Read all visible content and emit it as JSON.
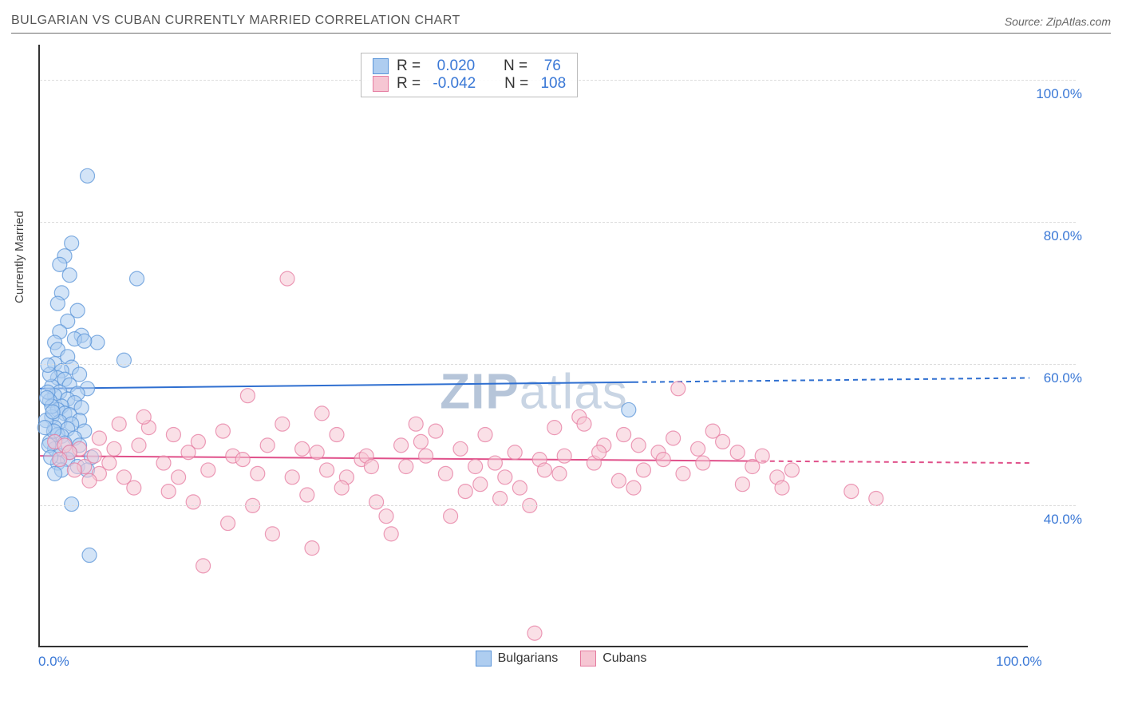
{
  "title": "BULGARIAN VS CUBAN CURRENTLY MARRIED CORRELATION CHART",
  "source_prefix": "Source:",
  "source_name": "ZipAtlas.com",
  "ylabel": "Currently Married",
  "watermark_a": "ZIP",
  "watermark_b": "atlas",
  "chart": {
    "type": "scatter",
    "xlim": [
      0,
      100
    ],
    "ylim": [
      20,
      105
    ],
    "xtick_labels": [
      "0.0%",
      "100.0%"
    ],
    "xtick_pos": [
      0,
      100
    ],
    "ytick_labels": [
      "40.0%",
      "60.0%",
      "80.0%",
      "100.0%"
    ],
    "ytick_pos": [
      40,
      60,
      80,
      100
    ],
    "grid_color": "#dcdcdc",
    "background": "#ffffff",
    "axis_color": "#333333",
    "label_color": "#3a78d6",
    "marker_radius": 9,
    "marker_opacity": 0.55,
    "series": [
      {
        "name": "Bulgarians",
        "fill": "#aecdf0",
        "stroke": "#5a94d8",
        "stroke_opacity": 0.75,
        "trend": {
          "y0": 56.5,
          "y1": 58.0,
          "x_solid_end": 60,
          "color": "#2f6fd0",
          "width": 2
        },
        "R_label": "R = ",
        "R_val": " 0.020",
        "N_label": "N = ",
        "N_val": " 76",
        "points": [
          [
            4.8,
            86.5
          ],
          [
            3.2,
            77.0
          ],
          [
            2.5,
            75.2
          ],
          [
            2.0,
            74.0
          ],
          [
            3.0,
            72.5
          ],
          [
            9.8,
            72.0
          ],
          [
            2.2,
            70.0
          ],
          [
            1.8,
            68.5
          ],
          [
            3.8,
            67.5
          ],
          [
            2.8,
            66.0
          ],
          [
            2.0,
            64.5
          ],
          [
            4.2,
            64.0
          ],
          [
            1.5,
            63.0
          ],
          [
            3.5,
            63.5
          ],
          [
            5.8,
            63.0
          ],
          [
            4.5,
            63.2
          ],
          [
            1.8,
            62.0
          ],
          [
            2.8,
            61.0
          ],
          [
            8.5,
            60.5
          ],
          [
            1.5,
            60.0
          ],
          [
            3.2,
            59.5
          ],
          [
            2.2,
            59.0
          ],
          [
            4.0,
            58.5
          ],
          [
            1.8,
            58.0
          ],
          [
            2.5,
            57.8
          ],
          [
            3.0,
            57.0
          ],
          [
            1.2,
            56.8
          ],
          [
            4.8,
            56.5
          ],
          [
            2.0,
            56.0
          ],
          [
            3.8,
            55.8
          ],
          [
            1.5,
            55.5
          ],
          [
            2.8,
            55.0
          ],
          [
            1.0,
            54.8
          ],
          [
            3.5,
            54.5
          ],
          [
            2.2,
            54.0
          ],
          [
            4.2,
            53.8
          ],
          [
            1.8,
            53.5
          ],
          [
            2.5,
            53.0
          ],
          [
            3.0,
            52.8
          ],
          [
            1.2,
            52.5
          ],
          [
            4.0,
            52.0
          ],
          [
            2.0,
            51.8
          ],
          [
            3.2,
            51.5
          ],
          [
            1.5,
            51.0
          ],
          [
            2.8,
            50.8
          ],
          [
            4.5,
            50.5
          ],
          [
            1.8,
            50.0
          ],
          [
            2.2,
            49.8
          ],
          [
            3.5,
            49.5
          ],
          [
            1.0,
            49.0
          ],
          [
            2.5,
            48.8
          ],
          [
            4.0,
            48.5
          ],
          [
            1.5,
            48.0
          ],
          [
            3.0,
            47.5
          ],
          [
            2.0,
            47.0
          ],
          [
            5.2,
            46.8
          ],
          [
            2.8,
            46.5
          ],
          [
            1.8,
            46.0
          ],
          [
            3.8,
            45.5
          ],
          [
            2.2,
            45.0
          ],
          [
            4.8,
            45.0
          ],
          [
            1.5,
            44.5
          ],
          [
            59.5,
            53.5
          ],
          [
            3.2,
            40.2
          ],
          [
            5.0,
            33.0
          ],
          [
            0.8,
            56.0
          ],
          [
            1.2,
            54.0
          ],
          [
            0.6,
            52.0
          ],
          [
            1.4,
            50.5
          ],
          [
            0.9,
            48.5
          ],
          [
            1.1,
            46.8
          ],
          [
            0.7,
            55.2
          ],
          [
            1.3,
            53.2
          ],
          [
            0.5,
            51.0
          ],
          [
            1.0,
            58.5
          ],
          [
            0.8,
            59.8
          ]
        ]
      },
      {
        "name": "Cubans",
        "fill": "#f6c6d3",
        "stroke": "#e57ba0",
        "stroke_opacity": 0.75,
        "trend": {
          "y0": 47.0,
          "y1": 46.0,
          "x_solid_end": 72,
          "color": "#e0508a",
          "width": 2
        },
        "R_label": "R = ",
        "R_val": "-0.042",
        "N_label": "N = ",
        "N_val": "108",
        "points": [
          [
            25.0,
            72.0
          ],
          [
            64.5,
            56.5
          ],
          [
            1.5,
            49.0
          ],
          [
            2.5,
            48.5
          ],
          [
            4.0,
            48.0
          ],
          [
            3.0,
            47.5
          ],
          [
            5.5,
            47.0
          ],
          [
            2.0,
            46.5
          ],
          [
            7.0,
            46.0
          ],
          [
            4.5,
            45.5
          ],
          [
            3.5,
            45.0
          ],
          [
            6.0,
            44.5
          ],
          [
            8.5,
            44.0
          ],
          [
            5.0,
            43.5
          ],
          [
            11.0,
            51.0
          ],
          [
            13.5,
            50.0
          ],
          [
            10.0,
            48.5
          ],
          [
            15.0,
            47.5
          ],
          [
            12.5,
            46.0
          ],
          [
            17.0,
            45.0
          ],
          [
            14.0,
            44.0
          ],
          [
            18.5,
            50.5
          ],
          [
            21.0,
            55.5
          ],
          [
            16.0,
            49.0
          ],
          [
            19.5,
            47.0
          ],
          [
            23.0,
            48.5
          ],
          [
            20.5,
            46.5
          ],
          [
            24.5,
            51.5
          ],
          [
            22.0,
            44.5
          ],
          [
            26.5,
            48.0
          ],
          [
            25.5,
            44.0
          ],
          [
            28.0,
            47.5
          ],
          [
            27.0,
            41.5
          ],
          [
            30.0,
            50.0
          ],
          [
            29.0,
            45.0
          ],
          [
            32.5,
            46.5
          ],
          [
            31.0,
            44.0
          ],
          [
            34.0,
            40.5
          ],
          [
            33.0,
            47.0
          ],
          [
            36.5,
            48.5
          ],
          [
            35.0,
            38.5
          ],
          [
            38.0,
            51.5
          ],
          [
            37.0,
            45.5
          ],
          [
            40.0,
            50.5
          ],
          [
            39.0,
            47.0
          ],
          [
            42.5,
            48.0
          ],
          [
            41.0,
            44.5
          ],
          [
            44.0,
            45.5
          ],
          [
            43.0,
            42.0
          ],
          [
            46.5,
            41.0
          ],
          [
            45.0,
            50.0
          ],
          [
            48.0,
            47.5
          ],
          [
            47.0,
            44.0
          ],
          [
            50.5,
            46.5
          ],
          [
            49.5,
            40.0
          ],
          [
            52.0,
            51.0
          ],
          [
            51.0,
            45.0
          ],
          [
            54.5,
            52.5
          ],
          [
            53.0,
            47.0
          ],
          [
            56.0,
            46.0
          ],
          [
            55.0,
            51.5
          ],
          [
            58.5,
            43.5
          ],
          [
            57.0,
            48.5
          ],
          [
            60.0,
            42.5
          ],
          [
            59.0,
            50.0
          ],
          [
            62.5,
            47.5
          ],
          [
            61.0,
            45.0
          ],
          [
            64.0,
            49.5
          ],
          [
            63.0,
            46.5
          ],
          [
            66.5,
            48.0
          ],
          [
            65.0,
            44.5
          ],
          [
            68.0,
            50.5
          ],
          [
            67.0,
            46.0
          ],
          [
            70.5,
            47.5
          ],
          [
            69.0,
            49.0
          ],
          [
            72.0,
            45.5
          ],
          [
            71.0,
            43.0
          ],
          [
            74.5,
            44.0
          ],
          [
            73.0,
            47.0
          ],
          [
            76.0,
            45.0
          ],
          [
            75.0,
            42.5
          ],
          [
            82.0,
            42.0
          ],
          [
            84.5,
            41.0
          ],
          [
            50.0,
            22.0
          ],
          [
            16.5,
            31.5
          ],
          [
            23.5,
            36.0
          ],
          [
            27.5,
            34.0
          ],
          [
            19.0,
            37.5
          ],
          [
            35.5,
            36.0
          ],
          [
            41.5,
            38.5
          ],
          [
            44.5,
            43.0
          ],
          [
            9.5,
            42.5
          ],
          [
            13.0,
            42.0
          ],
          [
            48.5,
            42.5
          ],
          [
            8.0,
            51.5
          ],
          [
            10.5,
            52.5
          ],
          [
            28.5,
            53.0
          ],
          [
            38.5,
            49.0
          ],
          [
            46.0,
            46.0
          ],
          [
            52.5,
            44.5
          ],
          [
            56.5,
            47.5
          ],
          [
            60.5,
            48.5
          ],
          [
            15.5,
            40.5
          ],
          [
            21.5,
            40.0
          ],
          [
            30.5,
            42.5
          ],
          [
            33.5,
            45.5
          ],
          [
            6.0,
            49.5
          ],
          [
            7.5,
            48.0
          ]
        ]
      }
    ],
    "legend_bottom": [
      {
        "label": "Bulgarians",
        "fill": "#aecdf0",
        "stroke": "#5a94d8"
      },
      {
        "label": "Cubans",
        "fill": "#f6c6d3",
        "stroke": "#e57ba0"
      }
    ]
  }
}
